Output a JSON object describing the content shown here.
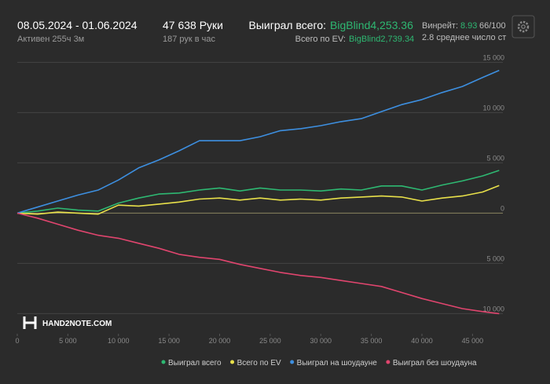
{
  "header": {
    "period": "08.05.2024 - 01.06.2024",
    "active": "Активен 255ч 3м",
    "hands": "47 638 Руки",
    "hands_per_hour": "187 рук в час",
    "won_label": "Выиграл всего:",
    "won_value": "BigBlind4,253.36",
    "ev_label": "Всего по EV:",
    "ev_value": "BigBlind2,739.34",
    "winrate_label": "Винрейт:",
    "winrate_value": "8.93",
    "winrate_unit": "66/100",
    "stacks": "2.8 среднее число ст",
    "logo": "HAND2NOTE.COM"
  },
  "chart_data": {
    "type": "line",
    "x": [
      0,
      2000,
      4000,
      6000,
      8000,
      10000,
      12000,
      14000,
      16000,
      18000,
      20000,
      22000,
      24000,
      26000,
      28000,
      30000,
      32000,
      34000,
      36000,
      38000,
      40000,
      42000,
      44000,
      46000,
      47638
    ],
    "series": [
      {
        "name": "Выиграл всего",
        "color": "#2eb872",
        "values": [
          0,
          200,
          500,
          300,
          200,
          1000,
          1500,
          1900,
          2000,
          2300,
          2500,
          2200,
          2500,
          2300,
          2300,
          2200,
          2400,
          2300,
          2700,
          2700,
          2300,
          2800,
          3200,
          3700,
          4253
        ]
      },
      {
        "name": "Всего по EV",
        "color": "#e8e04a",
        "values": [
          0,
          -100,
          100,
          0,
          -100,
          800,
          700,
          900,
          1100,
          1400,
          1500,
          1300,
          1500,
          1300,
          1400,
          1300,
          1500,
          1600,
          1700,
          1600,
          1200,
          1500,
          1700,
          2100,
          2739
        ]
      },
      {
        "name": "Выиграл на шоудауне",
        "color": "#3d8fe0",
        "values": [
          0,
          600,
          1200,
          1800,
          2300,
          3300,
          4500,
          5300,
          6200,
          7200,
          7200,
          7200,
          7600,
          8200,
          8400,
          8700,
          9100,
          9400,
          10100,
          10800,
          11300,
          12000,
          12600,
          13500,
          14200
        ]
      },
      {
        "name": "Выиграл без шоудауна",
        "color": "#e0456e",
        "values": [
          0,
          -500,
          -1100,
          -1700,
          -2200,
          -2500,
          -3000,
          -3500,
          -4100,
          -4400,
          -4600,
          -5100,
          -5500,
          -5900,
          -6200,
          -6400,
          -6700,
          -7000,
          -7300,
          -7900,
          -8500,
          -9000,
          -9500,
          -9800,
          -10000
        ]
      }
    ],
    "xlim": [
      0,
      48000
    ],
    "ylim": [
      -12000,
      15500
    ],
    "xticks": [
      0,
      {
        "value": 5000,
        "label": "5 000"
      },
      {
        "value": 10000,
        "label": "10 000"
      },
      {
        "value": 15000,
        "label": "15 000"
      },
      {
        "value": 20000,
        "label": "20 000"
      },
      {
        "value": 25000,
        "label": "25 000"
      },
      {
        "value": 30000,
        "label": "30 000"
      },
      {
        "value": 35000,
        "label": "35 000"
      },
      {
        "value": 40000,
        "label": "40 000"
      },
      {
        "value": 45000,
        "label": "45 000"
      }
    ],
    "yticks": [
      {
        "value": -10000,
        "label": "10 000"
      },
      {
        "value": -5000,
        "label": "5 000"
      },
      0,
      {
        "value": 5000,
        "label": "5 000"
      },
      {
        "value": 10000,
        "label": "10 000"
      },
      {
        "value": 15000,
        "label": "15 000"
      }
    ],
    "grid": true
  }
}
